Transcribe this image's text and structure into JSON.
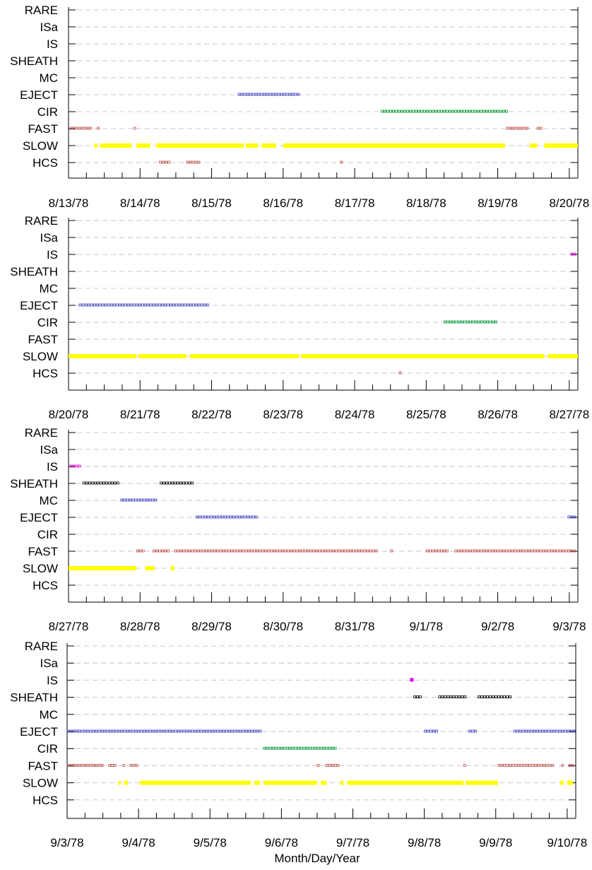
{
  "categories": [
    "RARE",
    "ISa",
    "IS",
    "SHEATH",
    "MC",
    "EJECT",
    "CIR",
    "FAST",
    "SLOW",
    "HCS"
  ],
  "colors": {
    "SLOW": "#ffff00",
    "FAST": "#c0504d",
    "CIR": "#009933",
    "EJECT": "#4040c0",
    "MC": "#4040c0",
    "SHEATH": "#000000",
    "IS": "#e000e0",
    "HCS": "#c0504d",
    "grid": "#c8c8c8",
    "axis": "#000000"
  },
  "xlabel": "Month/Day/Year",
  "chart_data": [
    {
      "type": "scatter",
      "x_start": "8/13/78",
      "xlim_days": [
        0,
        7.12
      ],
      "tick_labels": [
        "8/13/78",
        "8/14/78",
        "8/15/78",
        "8/16/78",
        "8/17/78",
        "8/18/78",
        "8/19/78",
        "8/20/78"
      ],
      "series": [
        {
          "category": "EJECT",
          "intervals": [
            [
              2.37,
              3.27
            ]
          ]
        },
        {
          "category": "CIR",
          "intervals": [
            [
              4.37,
              6.15
            ]
          ]
        },
        {
          "category": "FAST",
          "intervals": [
            [
              0.02,
              0.35
            ],
            [
              0.4,
              0.42
            ],
            [
              0.91,
              0.93
            ],
            [
              6.12,
              6.45
            ],
            [
              6.55,
              6.64
            ]
          ]
        },
        {
          "category": "SLOW",
          "intervals": [
            [
              0.36,
              0.4
            ],
            [
              0.44,
              0.88
            ],
            [
              0.95,
              1.14
            ],
            [
              1.23,
              2.45
            ],
            [
              2.48,
              2.65
            ],
            [
              2.7,
              2.9
            ],
            [
              3.0,
              6.1
            ],
            [
              6.45,
              6.55
            ],
            [
              6.65,
              7.12
            ]
          ]
        },
        {
          "category": "HCS",
          "intervals": [
            [
              1.27,
              1.43
            ],
            [
              1.65,
              1.86
            ],
            [
              3.8,
              3.87
            ]
          ]
        }
      ]
    },
    {
      "type": "scatter",
      "x_start": "8/20/78",
      "xlim_days": [
        0,
        7.12
      ],
      "tick_labels": [
        "8/20/78",
        "8/21/78",
        "8/22/78",
        "8/23/78",
        "8/24/78",
        "8/25/78",
        "8/26/78",
        "8/27/78"
      ],
      "series": [
        {
          "category": "IS",
          "intervals": [
            [
              7.02,
              7.12
            ]
          ]
        },
        {
          "category": "EJECT",
          "intervals": [
            [
              0.15,
              1.98
            ]
          ]
        },
        {
          "category": "CIR",
          "intervals": [
            [
              5.25,
              6.0
            ]
          ]
        },
        {
          "category": "SLOW",
          "intervals": [
            [
              0.0,
              0.95
            ],
            [
              0.98,
              1.65
            ],
            [
              1.7,
              3.22
            ],
            [
              3.25,
              6.65
            ],
            [
              6.7,
              7.12
            ]
          ]
        },
        {
          "category": "HCS",
          "intervals": [
            [
              4.62,
              4.66
            ]
          ]
        }
      ]
    },
    {
      "type": "scatter",
      "x_start": "8/27/78",
      "xlim_days": [
        0,
        7.12
      ],
      "tick_labels": [
        "8/27/78",
        "8/28/78",
        "8/29/78",
        "8/30/78",
        "8/31/78",
        "9/1/78",
        "9/2/78",
        "9/3/78"
      ],
      "series": [
        {
          "category": "IS",
          "intervals": [
            [
              0.02,
              0.18
            ]
          ]
        },
        {
          "category": "SHEATH",
          "intervals": [
            [
              0.2,
              0.72
            ],
            [
              1.28,
              1.78
            ]
          ]
        },
        {
          "category": "MC",
          "intervals": [
            [
              0.73,
              1.27
            ]
          ]
        },
        {
          "category": "EJECT",
          "intervals": [
            [
              1.78,
              2.65
            ],
            [
              6.98,
              7.12
            ]
          ]
        },
        {
          "category": "FAST",
          "intervals": [
            [
              0.95,
              1.07
            ],
            [
              1.18,
              1.43
            ],
            [
              1.48,
              4.35
            ],
            [
              4.5,
              4.54
            ],
            [
              5.0,
              5.33
            ],
            [
              5.4,
              7.12
            ]
          ]
        },
        {
          "category": "SLOW",
          "intervals": [
            [
              0.0,
              0.95
            ],
            [
              1.07,
              1.2
            ],
            [
              1.43,
              1.48
            ]
          ]
        }
      ]
    },
    {
      "type": "scatter",
      "x_start": "9/3/78",
      "xlim_days": [
        0,
        7.12
      ],
      "tick_labels": [
        "9/3/78",
        "9/4/78",
        "9/5/78",
        "9/6/78",
        "9/7/78",
        "9/8/78",
        "9/9/78",
        "9/10/78"
      ],
      "series": [
        {
          "category": "IS",
          "intervals": [
            [
              4.8,
              4.83
            ]
          ]
        },
        {
          "category": "SHEATH",
          "intervals": [
            [
              4.85,
              5.0
            ],
            [
              5.2,
              5.6
            ],
            [
              5.75,
              6.23
            ]
          ]
        },
        {
          "category": "EJECT",
          "intervals": [
            [
              0.0,
              2.73
            ],
            [
              5.0,
              5.2
            ],
            [
              5.62,
              5.75
            ],
            [
              6.25,
              7.12
            ]
          ]
        },
        {
          "category": "CIR",
          "intervals": [
            [
              2.75,
              3.78
            ]
          ]
        },
        {
          "category": "FAST",
          "intervals": [
            [
              0.0,
              0.52
            ],
            [
              0.58,
              0.73
            ],
            [
              0.78,
              0.8
            ],
            [
              0.88,
              1.02
            ],
            [
              3.5,
              3.53
            ],
            [
              3.62,
              3.83
            ],
            [
              5.55,
              5.58
            ],
            [
              6.03,
              6.85
            ],
            [
              6.92,
              6.96
            ],
            [
              7.02,
              7.12
            ]
          ]
        },
        {
          "category": "SLOW",
          "intervals": [
            [
              0.72,
              0.75
            ],
            [
              0.8,
              0.85
            ],
            [
              1.02,
              2.57
            ],
            [
              2.62,
              2.7
            ],
            [
              2.75,
              3.5
            ],
            [
              3.55,
              3.63
            ],
            [
              3.83,
              3.87
            ],
            [
              3.92,
              5.55
            ],
            [
              5.58,
              6.03
            ],
            [
              6.9,
              6.95
            ],
            [
              7.0,
              7.08
            ]
          ]
        }
      ]
    }
  ]
}
